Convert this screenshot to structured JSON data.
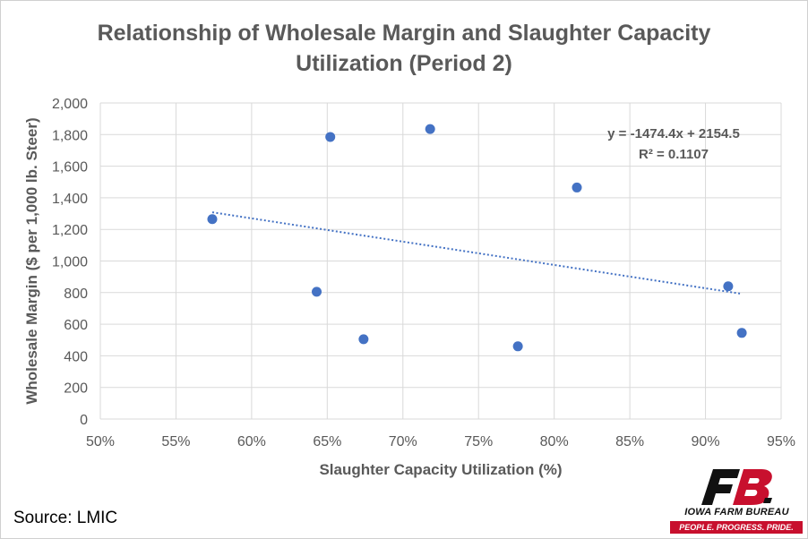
{
  "chart_data": {
    "type": "scatter",
    "title_line1": "Relationship of Wholesale Margin and Slaughter Capacity",
    "title_line2": "Utilization (Period 2)",
    "xlabel": "Slaughter Capacity Utilization (%)",
    "ylabel": "Wholesale Margin ($ per 1,000 lb. Steer)",
    "xlim": [
      0.5,
      0.95
    ],
    "ylim": [
      0,
      2000
    ],
    "xticks": [
      0.5,
      0.55,
      0.6,
      0.65,
      0.7,
      0.75,
      0.8,
      0.85,
      0.9,
      0.95
    ],
    "xtick_labels": [
      "50%",
      "55%",
      "60%",
      "65%",
      "70%",
      "75%",
      "80%",
      "85%",
      "90%",
      "95%"
    ],
    "yticks": [
      0,
      200,
      400,
      600,
      800,
      1000,
      1200,
      1400,
      1600,
      1800,
      2000
    ],
    "ytick_labels": [
      "0",
      "200",
      "400",
      "600",
      "800",
      "1,000",
      "1,200",
      "1,400",
      "1,600",
      "1,800",
      "2,000"
    ],
    "grid": true,
    "marker_color": "#4472c4",
    "trendline_color": "#4472c4",
    "points": [
      {
        "x": 0.574,
        "y": 1265
      },
      {
        "x": 0.643,
        "y": 805
      },
      {
        "x": 0.652,
        "y": 1785
      },
      {
        "x": 0.674,
        "y": 505
      },
      {
        "x": 0.718,
        "y": 1835
      },
      {
        "x": 0.776,
        "y": 460
      },
      {
        "x": 0.815,
        "y": 1465
      },
      {
        "x": 0.915,
        "y": 840
      },
      {
        "x": 0.924,
        "y": 545
      }
    ],
    "trendline": {
      "slope": -1474.4,
      "intercept": 2154.5,
      "x_range": [
        0.574,
        0.924
      ],
      "equation": "y = -1474.4x + 2154.5",
      "r_squared": "R² = 0.1107"
    }
  },
  "footer": {
    "source": "Source: LMIC"
  },
  "logo": {
    "name": "IOWA FARM BUREAU",
    "tagline": "PEOPLE. PROGRESS. PRIDE.",
    "brand_color": "#c8102e"
  }
}
